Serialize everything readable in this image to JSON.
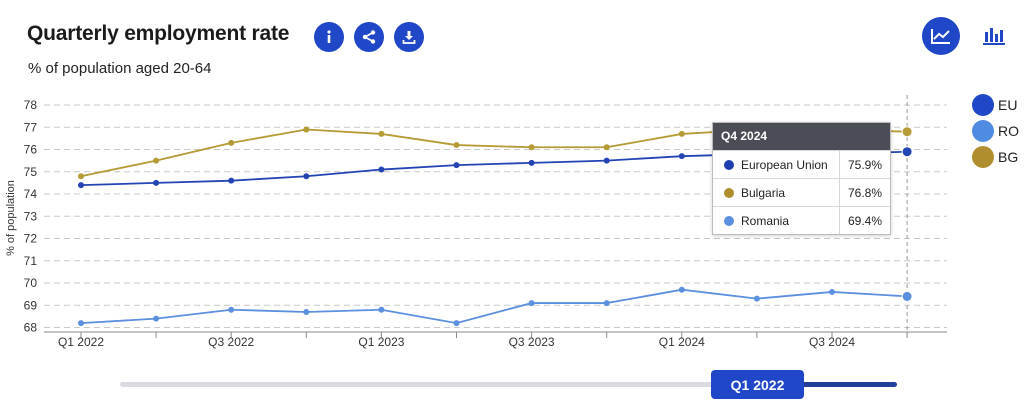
{
  "header": {
    "title": "Quarterly employment rate",
    "subtitle": "% of population aged 20-64"
  },
  "toolbar": {
    "buttons": [
      {
        "icon": "info-icon"
      },
      {
        "icon": "share-icon"
      },
      {
        "icon": "download-icon"
      }
    ],
    "view_buttons": [
      {
        "icon": "line-chart-icon",
        "active": true
      },
      {
        "icon": "bar-chart-icon",
        "active": false
      }
    ]
  },
  "colors": {
    "accent": "#1f47c8",
    "EU": "#2244b4",
    "RO": "#5b8fdf",
    "BG": "#b59a35"
  },
  "legend": [
    {
      "label": "EU",
      "color": "#1f47c8"
    },
    {
      "label": "RO",
      "color": "#4f8be0"
    },
    {
      "label": "BG",
      "color": "#b08d2e"
    }
  ],
  "tooltip": {
    "title": "Q4 2024",
    "rows": [
      {
        "name": "European Union",
        "value": "75.9%",
        "color": "#1f3fb0"
      },
      {
        "name": "Bulgaria",
        "value": "76.8%",
        "color": "#b08d2e"
      },
      {
        "name": "Romania",
        "value": "69.4%",
        "color": "#5b8fdf"
      }
    ]
  },
  "slider": {
    "label": "Q1 2022"
  },
  "chart_data": {
    "type": "line",
    "ylabel": "% of population",
    "xlabel": "",
    "categories": [
      "Q1 2022",
      "Q2 2022",
      "Q3 2022",
      "Q4 2022",
      "Q1 2023",
      "Q2 2023",
      "Q3 2023",
      "Q4 2023",
      "Q1 2024",
      "Q2 2024",
      "Q3 2024",
      "Q4 2024"
    ],
    "x_tick_labels": [
      "Q1 2022",
      "",
      "Q3 2022",
      "",
      "Q1 2023",
      "",
      "Q3 2023",
      "",
      "Q1 2024",
      "",
      "Q3 2024",
      ""
    ],
    "y_ticks": [
      68,
      69,
      70,
      71,
      72,
      73,
      74,
      75,
      76,
      77,
      78
    ],
    "ylim": [
      67.8,
      78
    ],
    "grid": true,
    "legend_position": "right",
    "series": [
      {
        "name": "EU",
        "color": "#2244b4",
        "values": [
          74.4,
          74.5,
          74.6,
          74.8,
          75.1,
          75.3,
          75.4,
          75.5,
          75.7,
          75.8,
          75.8,
          75.9
        ]
      },
      {
        "name": "RO",
        "color": "#5b8fdf",
        "values": [
          68.2,
          68.4,
          68.8,
          68.7,
          68.8,
          68.2,
          69.1,
          69.1,
          69.7,
          69.3,
          69.6,
          69.4
        ]
      },
      {
        "name": "BG",
        "color": "#b59a35",
        "values": [
          74.8,
          75.5,
          76.3,
          76.9,
          76.7,
          76.2,
          76.1,
          76.1,
          76.7,
          76.9,
          76.9,
          76.8
        ]
      }
    ],
    "highlight_category": "Q4 2024"
  }
}
